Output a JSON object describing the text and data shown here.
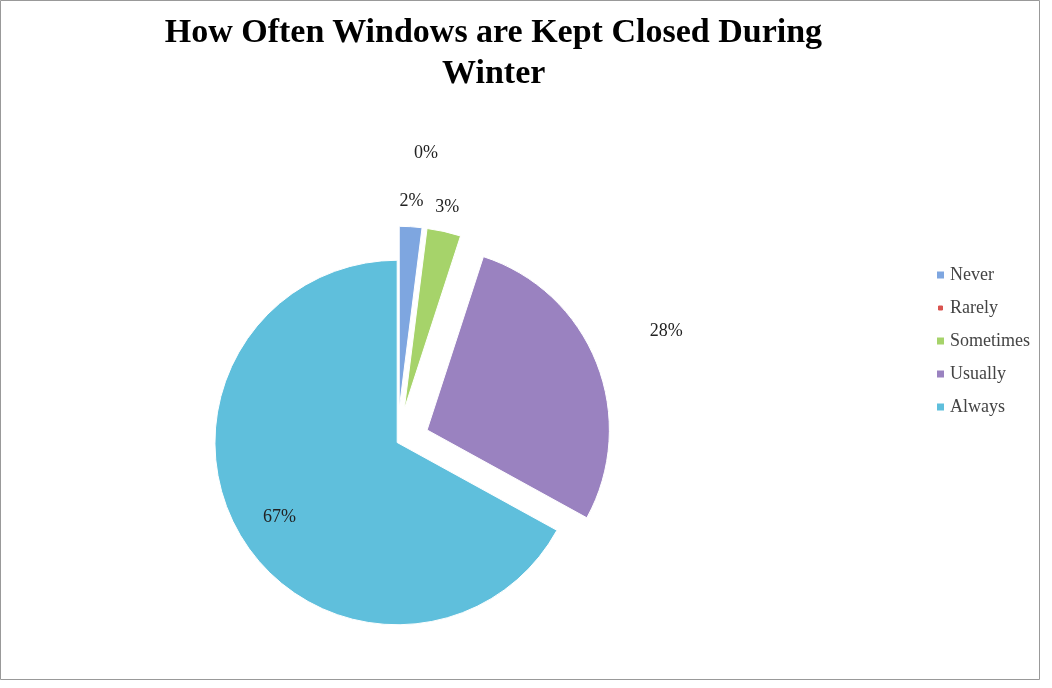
{
  "chart_data": {
    "type": "pie",
    "title": "How Often Windows are Kept Closed During Winter",
    "categories": [
      "Never",
      "Rarely",
      "Sometimes",
      "Usually",
      "Always"
    ],
    "values": [
      2,
      0,
      3,
      28,
      67
    ],
    "value_labels": [
      "2%",
      "0%",
      "3%",
      "28%",
      "67%"
    ],
    "colors": [
      "#7ea6e0",
      "#d9534f",
      "#a6d36a",
      "#9a82c0",
      "#5fbfdc"
    ],
    "legend": "right"
  }
}
